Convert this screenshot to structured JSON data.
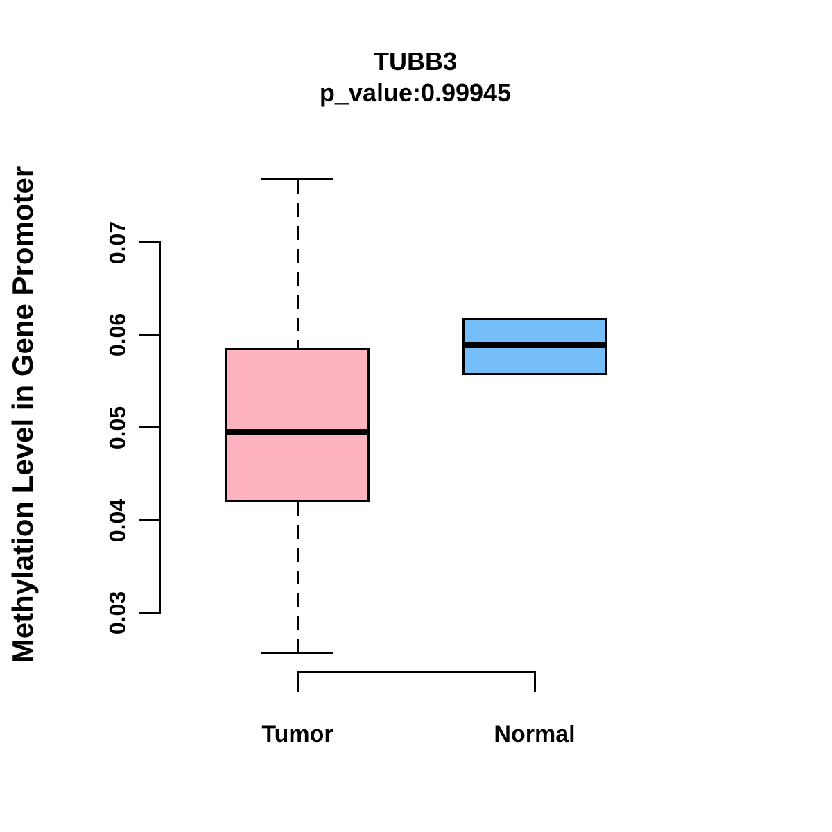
{
  "chart_data": {
    "type": "boxplot",
    "title": "TUBB3",
    "subtitle": "p_value:0.99945",
    "ylabel": "Methylation Level in Gene Promoter",
    "xlabel": "",
    "y_axis": {
      "tick_min": 0.03,
      "tick_max": 0.07,
      "grid": false
    },
    "yticks": [
      {
        "label": "0.07",
        "value": 0.07
      },
      {
        "label": "0.06",
        "value": 0.06
      },
      {
        "label": "0.05",
        "value": 0.05
      },
      {
        "label": "0.04",
        "value": 0.04
      },
      {
        "label": "0.03",
        "value": 0.03
      }
    ],
    "categories": [
      "Tumor",
      "Normal"
    ],
    "groups": [
      {
        "label": "Tumor",
        "fill": "#FFB3C1",
        "whisker_low": 0.0257,
        "q1": 0.0421,
        "median": 0.0495,
        "q3": 0.0585,
        "whisker_high": 0.0768,
        "whisker_style": "dashed"
      },
      {
        "label": "Normal",
        "fill": "#75BEF8",
        "whisker_low": 0.0558,
        "q1": 0.0558,
        "median": 0.0589,
        "q3": 0.0618,
        "whisker_high": 0.0618,
        "whisker_style": "dashed"
      }
    ],
    "outliers": [],
    "legend_position": "none",
    "colors": {
      "stroke": "#000000",
      "background": "#FFFFFF"
    }
  }
}
